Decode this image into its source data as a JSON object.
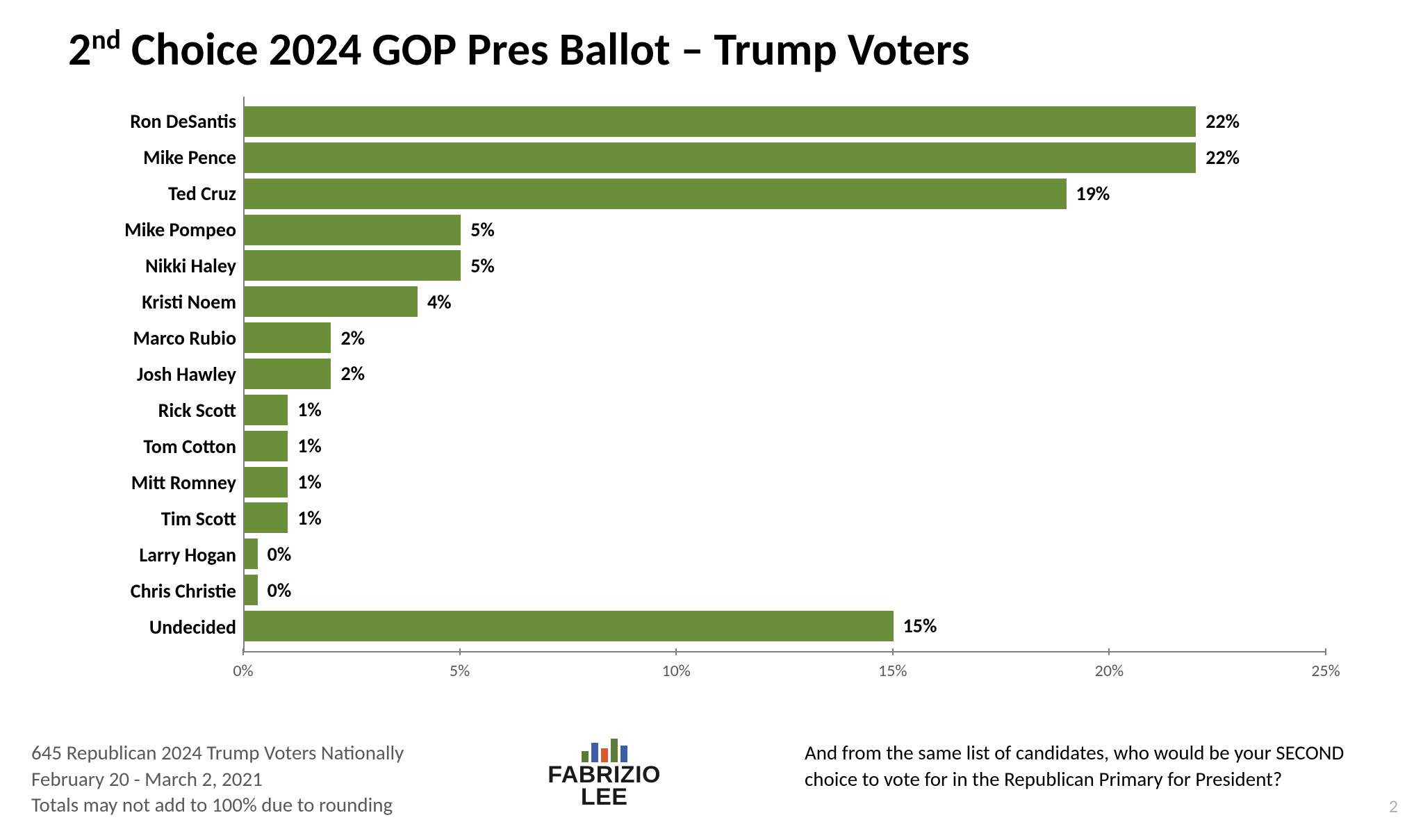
{
  "title_pre": "2",
  "title_sup": "nd",
  "title_rest": " Choice 2024 GOP Pres Ballot – Trump Voters",
  "chart": {
    "type": "bar-horizontal",
    "bar_color": "#6b8e3a",
    "axis_color": "#808080",
    "value_label_fontsize": 28,
    "value_label_fontweight": 700,
    "category_fontsize": 28,
    "category_fontweight": 700,
    "xmax": 25,
    "xticks": [
      0,
      5,
      10,
      15,
      20,
      25
    ],
    "xtick_labels": [
      "0%",
      "5%",
      "10%",
      "15%",
      "20%",
      "25%"
    ],
    "min_bar_pct": 0.3,
    "categories": [
      {
        "name": "Ron DeSantis",
        "value": 22,
        "label": "22%"
      },
      {
        "name": "Mike Pence",
        "value": 22,
        "label": "22%"
      },
      {
        "name": "Ted Cruz",
        "value": 19,
        "label": "19%"
      },
      {
        "name": "Mike Pompeo",
        "value": 5,
        "label": "5%"
      },
      {
        "name": "Nikki Haley",
        "value": 5,
        "label": "5%"
      },
      {
        "name": "Kristi Noem",
        "value": 4,
        "label": "4%"
      },
      {
        "name": "Marco Rubio",
        "value": 2,
        "label": "2%"
      },
      {
        "name": "Josh Hawley",
        "value": 2,
        "label": "2%"
      },
      {
        "name": "Rick Scott",
        "value": 1,
        "label": "1%"
      },
      {
        "name": "Tom Cotton",
        "value": 1,
        "label": "1%"
      },
      {
        "name": "Mitt Romney",
        "value": 1,
        "label": "1%"
      },
      {
        "name": "Tim Scott",
        "value": 1,
        "label": "1%"
      },
      {
        "name": "Larry Hogan",
        "value": 0,
        "label": "0%"
      },
      {
        "name": "Chris Christie",
        "value": 0,
        "label": "0%"
      },
      {
        "name": "Undecided",
        "value": 15,
        "label": "15%"
      }
    ]
  },
  "footer": {
    "left_l1": "645 Republican 2024 Trump Voters Nationally",
    "left_l2": "February 20 - March 2, 2021",
    "left_l3": "Totals may not add to 100% due to rounding",
    "right": "And from the same list of candidates, who would be your SECOND choice to vote for in the Republican Primary for President?",
    "logo_line1": "FABRIZIO",
    "logo_line2": "LEE",
    "logo_bar_colors": [
      "#5b7a3a",
      "#3a5ea8",
      "#d9572b",
      "#5b7a3a",
      "#3a5ea8"
    ],
    "logo_bar_heights": [
      16,
      28,
      20,
      34,
      24
    ]
  },
  "page_number": "2"
}
